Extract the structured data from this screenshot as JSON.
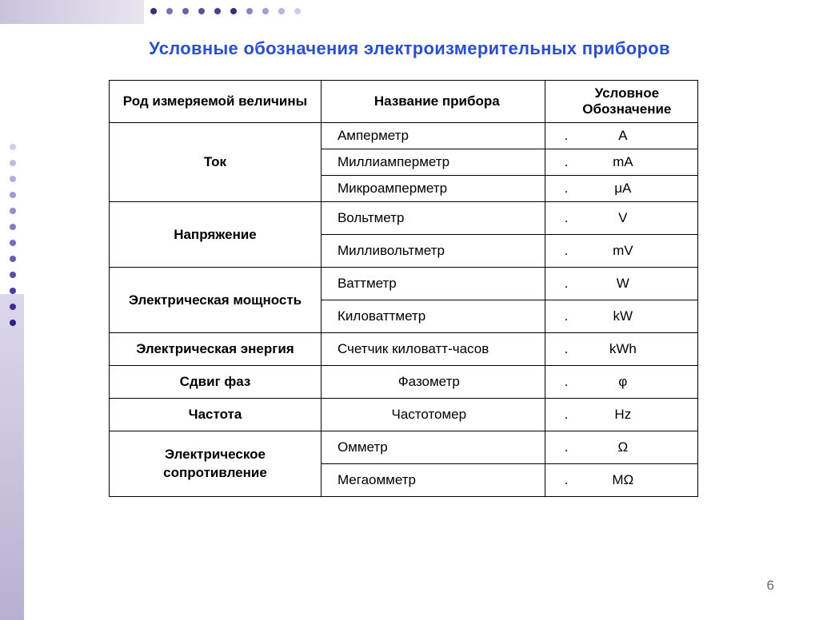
{
  "title": "Условные обозначения электроизмерительных приборов",
  "page_number": "6",
  "colors": {
    "title_color": "#2a4fc9",
    "border_color": "#000000",
    "body_bg": "#ffffff",
    "dot_colors": [
      "#3a2f6a",
      "#7a6fb4",
      "#6c61a8",
      "#5c4f98",
      "#4b3e88",
      "#3a2f6a",
      "#8e84c1",
      "#a69cd0",
      "#bcb3dc",
      "#d2cbe7"
    ],
    "side_dot_colors": [
      "#d2cbe7",
      "#c3bbdf",
      "#b4abd8",
      "#a59bd0",
      "#978bc8",
      "#887bc0",
      "#796bb8",
      "#6a5bb0",
      "#5b4ba8",
      "#4d3ca0",
      "#3e2c98",
      "#2f1d90"
    ]
  },
  "typography": {
    "title_fontsize": 22,
    "body_fontsize": 17,
    "font_family": "Arial"
  },
  "table": {
    "type": "table",
    "column_widths_pct": [
      36,
      38,
      26
    ],
    "headers": {
      "quantity": "Род измеряемой величины",
      "device": "Название прибора",
      "symbol_l1": "Условное",
      "symbol_l2": "Обозначение"
    },
    "groups": [
      {
        "quantity": "Ток",
        "rows": [
          {
            "device": "Амперметр",
            "symbol_prefix": ".",
            "symbol": "A"
          },
          {
            "device": "Миллиамперметр",
            "symbol_prefix": ".",
            "symbol": "mA"
          },
          {
            "device": "Микроамперметр",
            "symbol_prefix": ".",
            "symbol": "μA"
          }
        ],
        "tall": false,
        "center_device": false
      },
      {
        "quantity": "Напряжение",
        "rows": [
          {
            "device": "Вольтметр",
            "symbol_prefix": ".",
            "symbol": "V"
          },
          {
            "device": "Милливольтметр",
            "symbol_prefix": ".",
            "symbol": "mV"
          }
        ],
        "tall": true,
        "center_device": false
      },
      {
        "quantity": "Электрическая мощность",
        "rows": [
          {
            "device": "Ваттметр",
            "symbol_prefix": ".",
            "symbol": "W"
          },
          {
            "device": "Киловаттметр",
            "symbol_prefix": ".",
            "symbol": "kW"
          }
        ],
        "tall": true,
        "center_device": false
      },
      {
        "quantity": "Электрическая энергия",
        "rows": [
          {
            "device": "Счетчик киловатт-часов",
            "symbol_prefix": ".",
            "symbol": "kWh"
          }
        ],
        "tall": true,
        "center_device": false
      },
      {
        "quantity": "Сдвиг фаз",
        "rows": [
          {
            "device": "Фазометр",
            "symbol_prefix": ".",
            "symbol": "φ"
          }
        ],
        "tall": true,
        "center_device": true
      },
      {
        "quantity": "Частота",
        "rows": [
          {
            "device": "Частотомер",
            "symbol_prefix": ".",
            "symbol": "Hz"
          }
        ],
        "tall": true,
        "center_device": true
      },
      {
        "quantity": "Электрическое\nсопротивление",
        "rows": [
          {
            "device": "Омметр",
            "symbol_prefix": ".",
            "symbol": "Ω"
          },
          {
            "device": "Мегаомметр",
            "symbol_prefix": ".",
            "symbol": "MΩ"
          }
        ],
        "tall": true,
        "center_device": false
      }
    ]
  }
}
